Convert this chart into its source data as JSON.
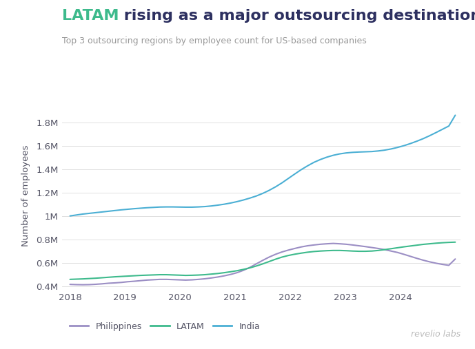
{
  "title_latam": "LATAM",
  "title_rest": " rising as a major outsourcing destination",
  "subtitle": "Top 3 outsourcing regions by employee count for US-based companies",
  "ylabel": "Number of employees",
  "watermark": "revelio labs",
  "title_color_latam": "#3dba8c",
  "title_color_rest": "#2d3060",
  "subtitle_color": "#999999",
  "background_color": "#ffffff",
  "grid_color": "#e0e0e0",
  "series": {
    "Philippines": {
      "color": "#9b8ec4",
      "data": [
        0.415,
        0.413,
        0.412,
        0.413,
        0.416,
        0.42,
        0.425,
        0.428,
        0.432,
        0.438,
        0.442,
        0.447,
        0.452,
        0.455,
        0.458,
        0.458,
        0.456,
        0.454,
        0.452,
        0.454,
        0.458,
        0.463,
        0.47,
        0.478,
        0.488,
        0.5,
        0.515,
        0.535,
        0.56,
        0.59,
        0.62,
        0.648,
        0.672,
        0.692,
        0.708,
        0.722,
        0.735,
        0.745,
        0.752,
        0.758,
        0.762,
        0.765,
        0.762,
        0.758,
        0.752,
        0.745,
        0.738,
        0.73,
        0.722,
        0.712,
        0.7,
        0.688,
        0.672,
        0.655,
        0.638,
        0.622,
        0.608,
        0.596,
        0.586,
        0.578,
        0.632
      ]
    },
    "LATAM": {
      "color": "#3dba8c",
      "data": [
        0.458,
        0.46,
        0.462,
        0.465,
        0.468,
        0.472,
        0.476,
        0.48,
        0.483,
        0.486,
        0.489,
        0.492,
        0.494,
        0.496,
        0.498,
        0.498,
        0.496,
        0.494,
        0.492,
        0.493,
        0.495,
        0.498,
        0.503,
        0.508,
        0.515,
        0.523,
        0.532,
        0.543,
        0.556,
        0.572,
        0.59,
        0.61,
        0.63,
        0.648,
        0.662,
        0.673,
        0.682,
        0.69,
        0.696,
        0.7,
        0.703,
        0.705,
        0.705,
        0.703,
        0.7,
        0.698,
        0.698,
        0.7,
        0.705,
        0.712,
        0.72,
        0.728,
        0.736,
        0.743,
        0.75,
        0.757,
        0.762,
        0.767,
        0.771,
        0.774,
        0.776
      ]
    },
    "India": {
      "color": "#4bafd4",
      "data": [
        1.0,
        1.008,
        1.016,
        1.022,
        1.028,
        1.034,
        1.04,
        1.046,
        1.052,
        1.057,
        1.062,
        1.066,
        1.07,
        1.073,
        1.076,
        1.077,
        1.077,
        1.076,
        1.075,
        1.075,
        1.077,
        1.08,
        1.085,
        1.092,
        1.1,
        1.11,
        1.122,
        1.136,
        1.152,
        1.17,
        1.192,
        1.218,
        1.248,
        1.282,
        1.32,
        1.358,
        1.395,
        1.428,
        1.458,
        1.482,
        1.502,
        1.518,
        1.53,
        1.538,
        1.543,
        1.546,
        1.548,
        1.55,
        1.555,
        1.562,
        1.572,
        1.585,
        1.6,
        1.618,
        1.638,
        1.66,
        1.685,
        1.712,
        1.74,
        1.768,
        1.86
      ]
    }
  },
  "n_points": 61,
  "x_start": 2018.0,
  "x_end": 2025.0,
  "xlim": [
    2017.85,
    2025.1
  ],
  "ylim": [
    0.37,
    1.98
  ],
  "yticks": [
    0.4,
    0.6,
    0.8,
    1.0,
    1.2,
    1.4,
    1.6,
    1.8
  ],
  "xtick_years": [
    2018,
    2019,
    2020,
    2021,
    2022,
    2023,
    2024
  ],
  "legend_labels": [
    "Philippines",
    "LATAM",
    "India"
  ],
  "legend_colors": [
    "#9b8ec4",
    "#3dba8c",
    "#4bafd4"
  ],
  "tick_color": "#555566",
  "tick_fontsize": 9.5,
  "ylabel_fontsize": 9.5
}
